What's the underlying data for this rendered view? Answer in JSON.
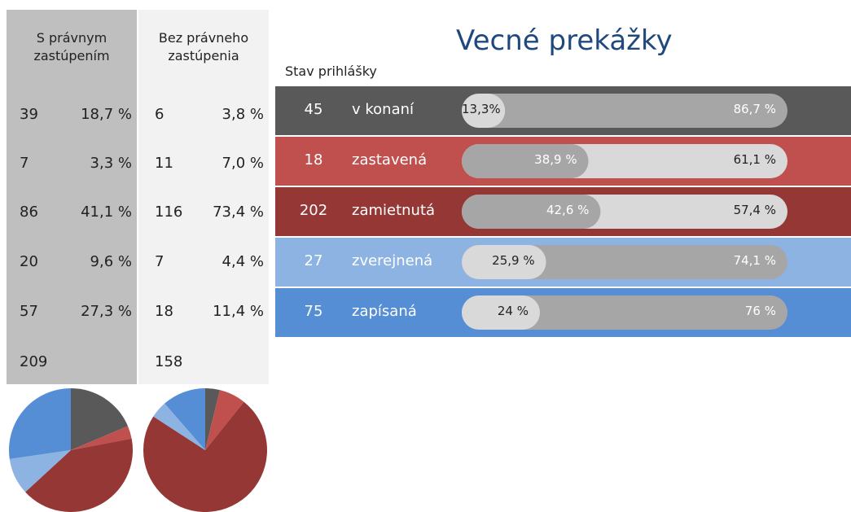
{
  "title": "Vecné prekážky",
  "column_label": "Stav prihlášky",
  "groups": [
    {
      "name": "S právnym zastúpením",
      "color": "#a6a6a6",
      "panel_color": "#bfbfbf",
      "counts": [
        39,
        7,
        86,
        20,
        57
      ],
      "percents": [
        18.7,
        3.3,
        41.1,
        9.6,
        27.3
      ],
      "percent_labels": [
        "18,7 %",
        "3,3 %",
        "41,1 %",
        "9,6 %",
        "27,3 %"
      ],
      "total": 209
    },
    {
      "name": "Bez právneho zastúpenia",
      "color": "#d9d9d9",
      "panel_color": "#f2f2f2",
      "counts": [
        6,
        11,
        116,
        7,
        18
      ],
      "percents": [
        3.8,
        7.0,
        73.4,
        4.4,
        11.4
      ],
      "percent_labels": [
        "3,8 %",
        "7,0 %",
        "73,4 %",
        "4,4 %",
        "11,4 %"
      ],
      "total": 158
    }
  ],
  "statuses": [
    {
      "name": "v konaní",
      "count": 45,
      "color": "#595959",
      "shares": [
        86.7,
        13.3
      ],
      "share_labels": [
        "86,7 %",
        "13,3%"
      ]
    },
    {
      "name": "zastavená",
      "count": 18,
      "color": "#c0504d",
      "shares": [
        38.9,
        61.1
      ],
      "share_labels": [
        "38,9 %",
        "61,1 %"
      ]
    },
    {
      "name": "zamietnutá",
      "count": 202,
      "color": "#953735",
      "shares": [
        42.6,
        57.4
      ],
      "share_labels": [
        "42,6 %",
        "57,4 %"
      ]
    },
    {
      "name": "zverejnená",
      "count": 27,
      "color": "#8db3e2",
      "shares": [
        74.1,
        25.9
      ],
      "share_labels": [
        "74,1 %",
        "25,9 %"
      ]
    },
    {
      "name": "zapísaná",
      "count": 75,
      "color": "#558ed5",
      "shares": [
        76,
        24
      ],
      "share_labels": [
        "76 %",
        "24 %"
      ]
    }
  ]
}
